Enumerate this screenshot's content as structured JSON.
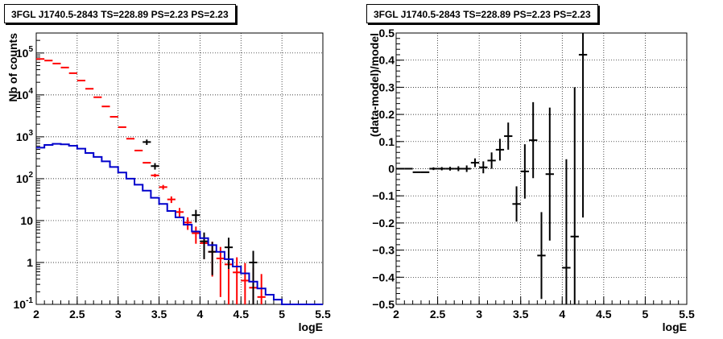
{
  "chart_data": [
    {
      "type": "step+errorbar",
      "title": "3FGL J1740.5-2843 TS=228.89 PS=2.23 PS=2.23",
      "xlabel": "logE",
      "ylabel": "Nb of counts",
      "xlim": [
        2,
        5.5
      ],
      "ylim": [
        0.1,
        300000
      ],
      "ylog": true,
      "grid": true,
      "x_ticks": [
        "2",
        "2.5",
        "3",
        "3.5",
        "4",
        "4.5",
        "5",
        "5.5"
      ],
      "y_ticks": [
        {
          "value": 0.1,
          "base": "10",
          "exp": "-1"
        },
        {
          "value": 1,
          "base": "1",
          "exp": ""
        },
        {
          "value": 10,
          "base": "10",
          "exp": ""
        },
        {
          "value": 100,
          "base": "10",
          "exp": "2"
        },
        {
          "value": 1000,
          "base": "10",
          "exp": "3"
        },
        {
          "value": 10000,
          "base": "10",
          "exp": "4"
        },
        {
          "value": 100000,
          "base": "10",
          "exp": "5"
        }
      ],
      "series": [
        {
          "role": "model-total",
          "color": "#ff0000",
          "bin_width": 0.1,
          "x": [
            2.05,
            2.15,
            2.25,
            2.35,
            2.45,
            2.55,
            2.65,
            2.75,
            2.85,
            2.95,
            3.05,
            3.15,
            3.25,
            3.35,
            3.45,
            3.55,
            3.65,
            3.75,
            3.85,
            3.95,
            4.05,
            4.15,
            4.25,
            4.35,
            4.45,
            4.55,
            4.65,
            4.75
          ],
          "y": [
            72000,
            66000,
            56000,
            45000,
            33000,
            22000,
            14000,
            8800,
            5300,
            3000,
            1700,
            900,
            470,
            240,
            120,
            63,
            32,
            16,
            9,
            5,
            2.9,
            1.8,
            1.25,
            0.9,
            0.58,
            0.37,
            0.25,
            0.15
          ],
          "yerr": [
            270,
            257,
            237,
            212,
            182,
            148,
            118,
            94,
            73,
            55,
            41,
            30,
            21.7,
            15.5,
            11,
            7.9,
            5.7,
            4,
            3,
            2.2,
            1.7,
            1.34,
            1.1,
            0.93,
            0.75,
            0.6,
            0.5,
            0.38
          ]
        },
        {
          "role": "data",
          "color": "#000000",
          "x": [
            2.05,
            2.15,
            2.25,
            2.35,
            2.45,
            2.55,
            2.65,
            2.75,
            2.85,
            2.95,
            3.05,
            3.15,
            3.25,
            3.35,
            3.45,
            3.55,
            3.65,
            3.75,
            3.85,
            3.95,
            4.05,
            4.15,
            4.25,
            4.35,
            4.45,
            4.55,
            4.65,
            4.75
          ],
          "y": [
            72000,
            66000,
            56000,
            45000,
            33000,
            22000,
            14000,
            8800,
            5300,
            3000,
            1700,
            900,
            470,
            240,
            120,
            63,
            32,
            16,
            9,
            5,
            2.9,
            1.8,
            1.25,
            0.9,
            0.58,
            0.37,
            0.25,
            0.15
          ],
          "yerr": [
            270,
            257,
            237,
            212,
            182,
            148,
            118,
            94,
            73,
            55,
            41,
            30,
            21.7,
            15.5,
            11,
            7.9,
            5.7,
            4,
            3,
            2.2,
            1.7,
            1.34,
            1.1,
            0.93,
            0.75,
            0.6,
            0.5,
            0.38
          ],
          "extra_points": [
            {
              "x": 3.35,
              "y": 750,
              "yerr": 110
            },
            {
              "x": 3.45,
              "y": 200,
              "yerr": 35
            },
            {
              "x": 3.95,
              "y": 13.5,
              "yerr": 4.5
            },
            {
              "x": 4.05,
              "y": 3.2,
              "yerr": 2
            },
            {
              "x": 4.15,
              "y": 1.8,
              "yerr": 1.3
            },
            {
              "x": 4.35,
              "y": 2.3,
              "yerr": 1.6
            },
            {
              "x": 4.65,
              "y": 1,
              "yerr": 0.9
            }
          ]
        },
        {
          "role": "source-model",
          "color": "#0000cc",
          "bin_width": 0.1,
          "x": [
            2.05,
            2.15,
            2.25,
            2.35,
            2.45,
            2.55,
            2.65,
            2.75,
            2.85,
            2.95,
            3.05,
            3.15,
            3.25,
            3.35,
            3.45,
            3.55,
            3.65,
            3.75,
            3.85,
            3.95,
            4.05,
            4.15,
            4.25,
            4.35,
            4.45,
            4.55,
            4.65,
            4.75,
            4.85,
            4.95,
            5.05,
            5.15,
            5.25,
            5.35,
            5.45
          ],
          "y": [
            550,
            640,
            680,
            660,
            610,
            520,
            410,
            330,
            260,
            190,
            140,
            100,
            72,
            52,
            35,
            25,
            17,
            12,
            8,
            5.5,
            3.8,
            2.6,
            1.8,
            1.2,
            0.8,
            0.55,
            0.35,
            0.24,
            0.17,
            0.13,
            0.1,
            0.1,
            0.1,
            0.1,
            0.1
          ]
        }
      ]
    },
    {
      "type": "errorbar",
      "title": "3FGL J1740.5-2843 TS=228.89 PS=2.23 PS=2.23",
      "xlabel": "logE",
      "ylabel": "(data-model)/model",
      "xlim": [
        2,
        5.5
      ],
      "ylim": [
        -0.5,
        0.5
      ],
      "grid": true,
      "x_ticks": [
        "2",
        "2.5",
        "3",
        "3.5",
        "4",
        "4.5",
        "5",
        "5.5"
      ],
      "y_ticks": [
        "-0.5",
        "-0.4",
        "-0.3",
        "-0.2",
        "-0.1",
        "0",
        "0.1",
        "0.2",
        "0.3",
        "0.4",
        "0.5"
      ],
      "points": [
        {
          "x": 2.05,
          "y": 0.0,
          "yerr": 0.003
        },
        {
          "x": 2.15,
          "y": 0.0,
          "yerr": 0.003
        },
        {
          "x": 2.25,
          "y": -0.013,
          "yerr": 0.004
        },
        {
          "x": 2.35,
          "y": -0.013,
          "yerr": 0.004
        },
        {
          "x": 2.45,
          "y": 0.0,
          "yerr": 0.005
        },
        {
          "x": 2.55,
          "y": 0.0,
          "yerr": 0.006
        },
        {
          "x": 2.65,
          "y": 0.0,
          "yerr": 0.007
        },
        {
          "x": 2.75,
          "y": 0.0,
          "yerr": 0.009
        },
        {
          "x": 2.85,
          "y": 0.0,
          "yerr": 0.012
        },
        {
          "x": 2.95,
          "y": 0.022,
          "yerr": 0.016
        },
        {
          "x": 3.05,
          "y": 0.005,
          "yerr": 0.022
        },
        {
          "x": 3.15,
          "y": 0.03,
          "yerr": 0.03
        },
        {
          "x": 3.25,
          "y": 0.07,
          "yerr": 0.04
        },
        {
          "x": 3.35,
          "y": 0.12,
          "yerr": 0.05
        },
        {
          "x": 3.45,
          "y": -0.13,
          "yerr": 0.065
        },
        {
          "x": 3.55,
          "y": -0.01,
          "yerr": 0.1
        },
        {
          "x": 3.65,
          "y": 0.105,
          "yerr": 0.14
        },
        {
          "x": 3.75,
          "y": -0.32,
          "yerr": 0.16
        },
        {
          "x": 3.85,
          "y": -0.02,
          "yerr": 0.245
        },
        {
          "x": 4.05,
          "y": -0.365,
          "yerr": 0.4
        },
        {
          "x": 4.15,
          "y": -0.25,
          "yerr": 0.55
        },
        {
          "x": 4.25,
          "y": 0.42,
          "yerr": 0.6
        }
      ]
    }
  ]
}
